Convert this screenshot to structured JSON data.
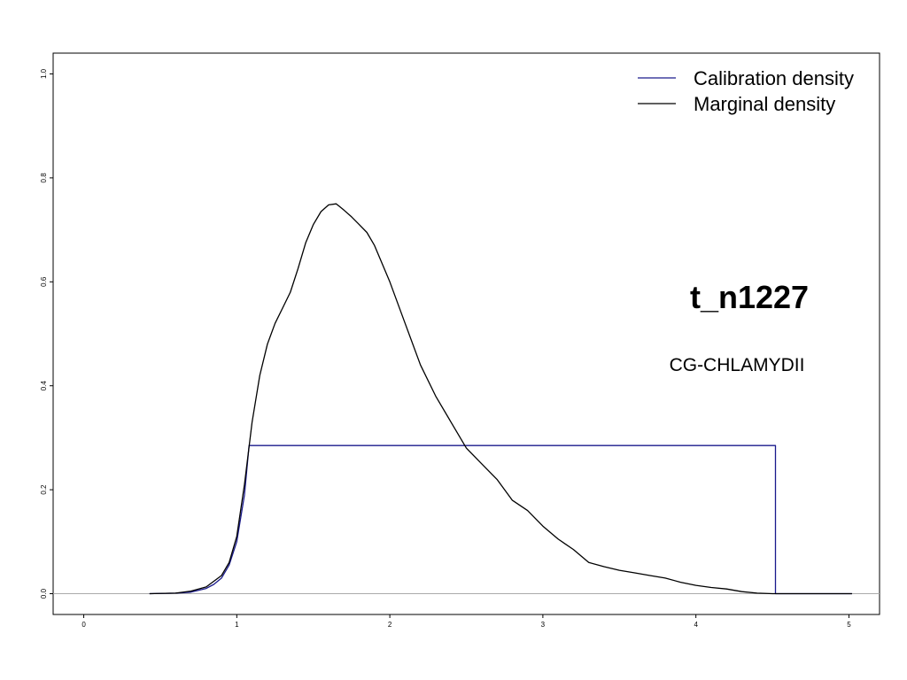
{
  "chart_data": {
    "type": "line",
    "title": "",
    "xlabel": "",
    "ylabel": "",
    "xlim": [
      -0.2,
      5.2
    ],
    "ylim": [
      -0.04,
      1.04
    ],
    "x_ticks": [
      {
        "value": 0,
        "label": "0"
      },
      {
        "value": 1,
        "label": "1"
      },
      {
        "value": 2,
        "label": "2"
      },
      {
        "value": 3,
        "label": "3"
      },
      {
        "value": 4,
        "label": "4"
      },
      {
        "value": 5,
        "label": "5"
      }
    ],
    "y_ticks": [
      {
        "value": 0.0,
        "label": "0.0"
      },
      {
        "value": 0.2,
        "label": "0.2"
      },
      {
        "value": 0.4,
        "label": "0.4"
      },
      {
        "value": 0.6,
        "label": "0.6"
      },
      {
        "value": 0.8,
        "label": "0.8"
      },
      {
        "value": 1.0,
        "label": "1.0"
      }
    ],
    "legend_placement": "top-right",
    "baseline": {
      "y": 0,
      "color": "#aaaaaa"
    },
    "series": [
      {
        "name": "Calibration density",
        "color": "#1a1a8c",
        "x": [
          0.43,
          0.6,
          0.7,
          0.8,
          0.85,
          0.9,
          0.95,
          1.0,
          1.05,
          1.08,
          1.08,
          4.52,
          4.52,
          5.02
        ],
        "y": [
          0.0,
          0.001,
          0.003,
          0.01,
          0.018,
          0.03,
          0.055,
          0.1,
          0.19,
          0.285,
          0.285,
          0.285,
          0.0,
          0.0
        ]
      },
      {
        "name": "Marginal density",
        "color": "#000000",
        "x": [
          0.43,
          0.6,
          0.7,
          0.8,
          0.9,
          0.95,
          1.0,
          1.05,
          1.1,
          1.15,
          1.2,
          1.25,
          1.3,
          1.35,
          1.4,
          1.45,
          1.5,
          1.55,
          1.6,
          1.65,
          1.7,
          1.75,
          1.8,
          1.85,
          1.9,
          2.0,
          2.1,
          2.2,
          2.3,
          2.4,
          2.5,
          2.6,
          2.7,
          2.8,
          2.9,
          3.0,
          3.1,
          3.2,
          3.3,
          3.4,
          3.5,
          3.6,
          3.7,
          3.8,
          3.9,
          4.0,
          4.1,
          4.2,
          4.3,
          4.4,
          4.5,
          4.6,
          4.7,
          4.8,
          5.02
        ],
        "y": [
          0.0,
          0.001,
          0.005,
          0.013,
          0.035,
          0.06,
          0.11,
          0.21,
          0.33,
          0.42,
          0.48,
          0.52,
          0.55,
          0.58,
          0.625,
          0.675,
          0.71,
          0.735,
          0.748,
          0.75,
          0.738,
          0.725,
          0.71,
          0.695,
          0.67,
          0.6,
          0.52,
          0.44,
          0.38,
          0.33,
          0.28,
          0.25,
          0.22,
          0.18,
          0.16,
          0.13,
          0.105,
          0.085,
          0.06,
          0.052,
          0.045,
          0.04,
          0.035,
          0.03,
          0.022,
          0.016,
          0.012,
          0.009,
          0.004,
          0.001,
          0.0,
          0.0,
          0.0,
          0.0,
          0.0
        ]
      }
    ],
    "annotations": {
      "node": "t_n1227",
      "group": "CG-CHLAMYDII"
    }
  }
}
